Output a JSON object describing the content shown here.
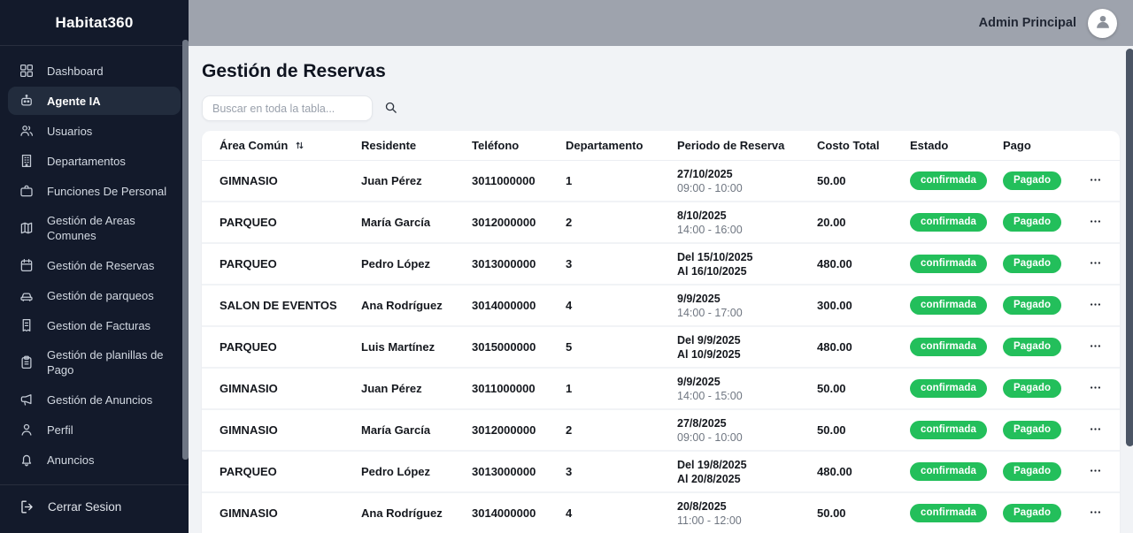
{
  "brand": "Habitat360",
  "topbar": {
    "user": "Admin Principal"
  },
  "sidebar": {
    "items": [
      {
        "label": "Dashboard",
        "icon": "dashboard",
        "active": false
      },
      {
        "label": "Agente IA",
        "icon": "robot",
        "active": true
      },
      {
        "label": "Usuarios",
        "icon": "users",
        "active": false
      },
      {
        "label": "Departamentos",
        "icon": "building",
        "active": false
      },
      {
        "label": "Funciones De Personal",
        "icon": "briefcase",
        "active": false
      },
      {
        "label": "Gestión de Areas Comunes",
        "icon": "map",
        "active": false
      },
      {
        "label": "Gestión de Reservas",
        "icon": "calendar",
        "active": false
      },
      {
        "label": "Gestión de parqueos",
        "icon": "car",
        "active": false
      },
      {
        "label": "Gestion de Facturas",
        "icon": "invoice",
        "active": false
      },
      {
        "label": "Gestión de planillas de Pago",
        "icon": "clipboard",
        "active": false
      },
      {
        "label": "Gestión de Anuncios",
        "icon": "megaphone",
        "active": false
      },
      {
        "label": "Perfil",
        "icon": "user",
        "active": false
      },
      {
        "label": "Anuncios",
        "icon": "bell",
        "active": false
      }
    ],
    "logout": {
      "label": "Cerrar Sesion",
      "icon": "logout"
    }
  },
  "page": {
    "title": "Gestión de Reservas",
    "search_placeholder": "Buscar en toda la tabla..."
  },
  "table": {
    "columns": [
      "Área Común",
      "Residente",
      "Teléfono",
      "Departamento",
      "Periodo de Reserva",
      "Costo Total",
      "Estado",
      "Pago"
    ],
    "rows": [
      {
        "area": "GIMNASIO",
        "residente": "Juan Pérez",
        "telefono": "3011000000",
        "departamento": "1",
        "periodo_1": "27/10/2025",
        "periodo_2": "09:00 - 10:00",
        "periodo_2_muted": true,
        "costo": "50.00",
        "estado": "confirmada",
        "pago": "Pagado"
      },
      {
        "area": "PARQUEO",
        "residente": "María García",
        "telefono": "3012000000",
        "departamento": "2",
        "periodo_1": "8/10/2025",
        "periodo_2": "14:00 - 16:00",
        "periodo_2_muted": true,
        "costo": "20.00",
        "estado": "confirmada",
        "pago": "Pagado"
      },
      {
        "area": "PARQUEO",
        "residente": "Pedro López",
        "telefono": "3013000000",
        "departamento": "3",
        "periodo_1": "Del 15/10/2025",
        "periodo_2": "Al 16/10/2025",
        "periodo_2_muted": false,
        "costo": "480.00",
        "estado": "confirmada",
        "pago": "Pagado"
      },
      {
        "area": "SALON DE EVENTOS",
        "residente": "Ana Rodríguez",
        "telefono": "3014000000",
        "departamento": "4",
        "periodo_1": "9/9/2025",
        "periodo_2": "14:00 - 17:00",
        "periodo_2_muted": true,
        "costo": "300.00",
        "estado": "confirmada",
        "pago": "Pagado"
      },
      {
        "area": "PARQUEO",
        "residente": "Luis Martínez",
        "telefono": "3015000000",
        "departamento": "5",
        "periodo_1": "Del 9/9/2025",
        "periodo_2": "Al 10/9/2025",
        "periodo_2_muted": false,
        "costo": "480.00",
        "estado": "confirmada",
        "pago": "Pagado"
      },
      {
        "area": "GIMNASIO",
        "residente": "Juan Pérez",
        "telefono": "3011000000",
        "departamento": "1",
        "periodo_1": "9/9/2025",
        "periodo_2": "14:00 - 15:00",
        "periodo_2_muted": true,
        "costo": "50.00",
        "estado": "confirmada",
        "pago": "Pagado"
      },
      {
        "area": "GIMNASIO",
        "residente": "María García",
        "telefono": "3012000000",
        "departamento": "2",
        "periodo_1": "27/8/2025",
        "periodo_2": "09:00 - 10:00",
        "periodo_2_muted": true,
        "costo": "50.00",
        "estado": "confirmada",
        "pago": "Pagado"
      },
      {
        "area": "PARQUEO",
        "residente": "Pedro López",
        "telefono": "3013000000",
        "departamento": "3",
        "periodo_1": "Del 19/8/2025",
        "periodo_2": "Al 20/8/2025",
        "periodo_2_muted": false,
        "costo": "480.00",
        "estado": "confirmada",
        "pago": "Pagado"
      },
      {
        "area": "GIMNASIO",
        "residente": "Ana Rodríguez",
        "telefono": "3014000000",
        "departamento": "4",
        "periodo_1": "20/8/2025",
        "periodo_2": "11:00 - 12:00",
        "periodo_2_muted": true,
        "costo": "50.00",
        "estado": "confirmada",
        "pago": "Pagado"
      }
    ]
  },
  "colors": {
    "badge_green": "#23bf5b",
    "sidebar_bg": "#131a2b",
    "sidebar_active": "#222c3d",
    "topbar_bg": "#9ea3ad"
  }
}
